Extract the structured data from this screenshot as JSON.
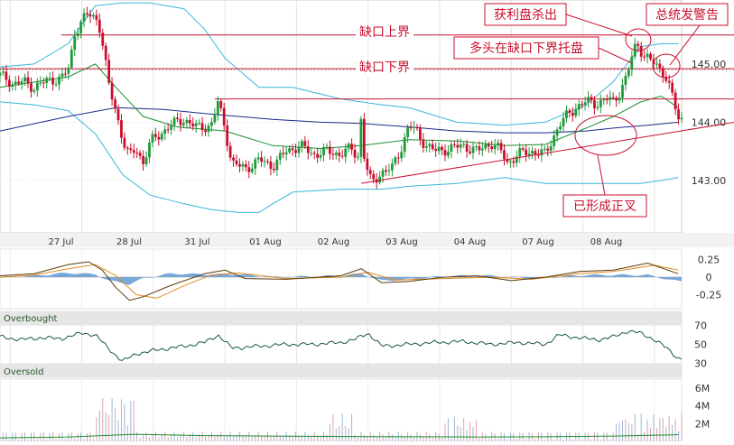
{
  "chart_data": [
    {
      "type": "candlestick",
      "panel": "price",
      "title": "",
      "x_ticks": [
        "27 Jul",
        "28 Jul",
        "31 Jul",
        "01 Aug",
        "02 Aug",
        "03 Aug",
        "04 Aug",
        "07 Aug",
        "08 Aug"
      ],
      "y_ticks": [
        "145.00",
        "144.00",
        "143.00"
      ],
      "y_tick_values": [
        145.0,
        144.0,
        143.0
      ],
      "ylim": [
        142.1,
        146.1
      ],
      "xlim": [
        0,
        1
      ],
      "session_marks": [
        0.015,
        0.12,
        0.225,
        0.33,
        0.435,
        0.54,
        0.645,
        0.75,
        0.855,
        0.96
      ],
      "close_series": [
        [
          0.0,
          144.8
        ],
        [
          0.01,
          144.75
        ],
        [
          0.02,
          144.65
        ],
        [
          0.035,
          144.7
        ],
        [
          0.05,
          144.6
        ],
        [
          0.07,
          144.72
        ],
        [
          0.09,
          144.75
        ],
        [
          0.1,
          144.9
        ],
        [
          0.105,
          145.2
        ],
        [
          0.11,
          145.55
        ],
        [
          0.12,
          145.75
        ],
        [
          0.13,
          145.85
        ],
        [
          0.14,
          145.8
        ],
        [
          0.145,
          145.7
        ],
        [
          0.15,
          145.4
        ],
        [
          0.155,
          145.0
        ],
        [
          0.16,
          144.6
        ],
        [
          0.17,
          144.2
        ],
        [
          0.18,
          143.7
        ],
        [
          0.19,
          143.4
        ],
        [
          0.2,
          143.55
        ],
        [
          0.21,
          143.3
        ],
        [
          0.22,
          143.65
        ],
        [
          0.235,
          143.8
        ],
        [
          0.25,
          143.95
        ],
        [
          0.27,
          144.05
        ],
        [
          0.29,
          143.9
        ],
        [
          0.31,
          143.95
        ],
        [
          0.32,
          144.35
        ],
        [
          0.33,
          143.9
        ],
        [
          0.34,
          143.3
        ],
        [
          0.36,
          143.2
        ],
        [
          0.38,
          143.35
        ],
        [
          0.4,
          143.25
        ],
        [
          0.42,
          143.5
        ],
        [
          0.44,
          143.6
        ],
        [
          0.46,
          143.45
        ],
        [
          0.48,
          143.5
        ],
        [
          0.5,
          143.45
        ],
        [
          0.515,
          143.55
        ],
        [
          0.525,
          143.4
        ],
        [
          0.53,
          144.1
        ],
        [
          0.535,
          143.3
        ],
        [
          0.545,
          142.95
        ],
        [
          0.56,
          143.15
        ],
        [
          0.575,
          143.2
        ],
        [
          0.59,
          143.6
        ],
        [
          0.6,
          143.95
        ],
        [
          0.61,
          143.85
        ],
        [
          0.625,
          143.6
        ],
        [
          0.64,
          143.5
        ],
        [
          0.66,
          143.55
        ],
        [
          0.68,
          143.6
        ],
        [
          0.7,
          143.5
        ],
        [
          0.72,
          143.65
        ],
        [
          0.735,
          143.5
        ],
        [
          0.745,
          143.3
        ],
        [
          0.76,
          143.45
        ],
        [
          0.78,
          143.5
        ],
        [
          0.8,
          143.45
        ],
        [
          0.81,
          143.7
        ],
        [
          0.82,
          143.95
        ],
        [
          0.835,
          144.15
        ],
        [
          0.85,
          144.3
        ],
        [
          0.86,
          144.35
        ],
        [
          0.875,
          144.32
        ],
        [
          0.89,
          144.4
        ],
        [
          0.9,
          144.35
        ],
        [
          0.91,
          144.55
        ],
        [
          0.92,
          144.8
        ],
        [
          0.93,
          145.25
        ],
        [
          0.935,
          145.35
        ],
        [
          0.945,
          145.15
        ],
        [
          0.955,
          145.05
        ],
        [
          0.965,
          144.95
        ],
        [
          0.975,
          144.85
        ],
        [
          0.985,
          144.5
        ],
        [
          0.995,
          144.05
        ]
      ],
      "ma_series": [
        [
          0.0,
          144.6
        ],
        [
          0.1,
          144.78
        ],
        [
          0.14,
          145.0
        ],
        [
          0.17,
          144.6
        ],
        [
          0.21,
          144.1
        ],
        [
          0.26,
          143.92
        ],
        [
          0.33,
          143.85
        ],
        [
          0.4,
          143.6
        ],
        [
          0.47,
          143.55
        ],
        [
          0.53,
          143.6
        ],
        [
          0.6,
          143.7
        ],
        [
          0.67,
          143.68
        ],
        [
          0.74,
          143.6
        ],
        [
          0.8,
          143.62
        ],
        [
          0.86,
          143.9
        ],
        [
          0.9,
          144.1
        ],
        [
          0.94,
          144.35
        ],
        [
          0.97,
          144.45
        ],
        [
          0.995,
          144.25
        ]
      ],
      "slow_ma_series": [
        [
          0.0,
          143.85
        ],
        [
          0.1,
          144.1
        ],
        [
          0.17,
          144.25
        ],
        [
          0.24,
          144.22
        ],
        [
          0.3,
          144.15
        ],
        [
          0.4,
          144.05
        ],
        [
          0.47,
          144.0
        ],
        [
          0.53,
          143.98
        ],
        [
          0.6,
          143.92
        ],
        [
          0.67,
          143.85
        ],
        [
          0.74,
          143.82
        ],
        [
          0.8,
          143.82
        ],
        [
          0.86,
          143.85
        ],
        [
          0.9,
          143.9
        ],
        [
          0.95,
          143.95
        ],
        [
          0.995,
          144.0
        ]
      ],
      "bollinger_upper": [
        [
          0.0,
          144.95
        ],
        [
          0.05,
          145.0
        ],
        [
          0.1,
          145.35
        ],
        [
          0.14,
          146.0
        ],
        [
          0.18,
          146.05
        ],
        [
          0.22,
          146.05
        ],
        [
          0.27,
          145.95
        ],
        [
          0.3,
          145.6
        ],
        [
          0.33,
          145.1
        ],
        [
          0.38,
          144.6
        ],
        [
          0.43,
          144.6
        ],
        [
          0.5,
          144.4
        ],
        [
          0.56,
          144.3
        ],
        [
          0.6,
          144.25
        ],
        [
          0.67,
          144.0
        ],
        [
          0.74,
          143.95
        ],
        [
          0.8,
          144.0
        ],
        [
          0.86,
          144.3
        ],
        [
          0.9,
          144.7
        ],
        [
          0.94,
          145.3
        ],
        [
          0.97,
          145.35
        ],
        [
          0.995,
          145.35
        ]
      ],
      "bollinger_lower": [
        [
          0.0,
          144.35
        ],
        [
          0.05,
          144.3
        ],
        [
          0.1,
          144.2
        ],
        [
          0.14,
          143.8
        ],
        [
          0.18,
          143.1
        ],
        [
          0.22,
          142.75
        ],
        [
          0.27,
          142.6
        ],
        [
          0.31,
          142.5
        ],
        [
          0.35,
          142.45
        ],
        [
          0.38,
          142.45
        ],
        [
          0.4,
          142.6
        ],
        [
          0.43,
          142.8
        ],
        [
          0.5,
          142.85
        ],
        [
          0.56,
          142.85
        ],
        [
          0.6,
          142.9
        ],
        [
          0.67,
          142.95
        ],
        [
          0.74,
          143.05
        ],
        [
          0.8,
          142.95
        ],
        [
          0.86,
          142.95
        ],
        [
          0.9,
          142.95
        ],
        [
          0.94,
          142.95
        ],
        [
          0.97,
          143.0
        ],
        [
          0.995,
          143.05
        ]
      ],
      "trendline": [
        [
          0.53,
          142.95
        ],
        [
          1.0,
          144.0
        ]
      ],
      "hlines": [
        {
          "y": 145.5,
          "style": "solid",
          "x_from": 0.09
        },
        {
          "y": 144.92,
          "style": "solid",
          "x_from": 0.0
        },
        {
          "y": 144.9,
          "style": "dotted",
          "x_from": 0.0
        },
        {
          "y": 144.4,
          "style": "solid",
          "x_from": 0.315
        }
      ],
      "annotations": [
        {
          "id": "gap_upper",
          "text": "缺口上界"
        },
        {
          "id": "gap_lower",
          "text": "缺口下界"
        },
        {
          "id": "profit_taking",
          "text": "获利盘杀出"
        },
        {
          "id": "bull_support",
          "text": "多头在缺口下界托盘"
        },
        {
          "id": "warning",
          "text": "总统发警告"
        },
        {
          "id": "golden_cross",
          "text": "已形成正叉"
        }
      ],
      "colors": {
        "up": "#1f9a3a",
        "down": "#c8102e",
        "ma": "#1d8f2f",
        "slow_ma": "#1b2a8c",
        "bollinger": "#35b8d8",
        "annotation": "#c8102e"
      }
    },
    {
      "type": "line",
      "panel": "oscillator",
      "y_ticks": [
        "0.25",
        "0",
        "-0.25"
      ],
      "y_tick_values": [
        0.25,
        0.0,
        -0.25
      ],
      "ylim": [
        -0.45,
        0.4
      ],
      "fast_series": [
        [
          0.0,
          0.02
        ],
        [
          0.05,
          0.05
        ],
        [
          0.1,
          0.18
        ],
        [
          0.13,
          0.22
        ],
        [
          0.15,
          0.1
        ],
        [
          0.17,
          -0.15
        ],
        [
          0.19,
          -0.33
        ],
        [
          0.21,
          -0.28
        ],
        [
          0.25,
          -0.12
        ],
        [
          0.3,
          0.05
        ],
        [
          0.33,
          0.1
        ],
        [
          0.36,
          -0.02
        ],
        [
          0.42,
          -0.03
        ],
        [
          0.5,
          0.02
        ],
        [
          0.53,
          0.12
        ],
        [
          0.56,
          -0.08
        ],
        [
          0.6,
          -0.06
        ],
        [
          0.65,
          0.0
        ],
        [
          0.7,
          0.02
        ],
        [
          0.75,
          -0.05
        ],
        [
          0.8,
          0.0
        ],
        [
          0.85,
          0.08
        ],
        [
          0.9,
          0.1
        ],
        [
          0.95,
          0.2
        ],
        [
          0.995,
          0.05
        ]
      ],
      "slow_series": [
        [
          0.0,
          0.0
        ],
        [
          0.05,
          0.03
        ],
        [
          0.1,
          0.12
        ],
        [
          0.14,
          0.18
        ],
        [
          0.17,
          0.02
        ],
        [
          0.2,
          -0.25
        ],
        [
          0.23,
          -0.3
        ],
        [
          0.27,
          -0.12
        ],
        [
          0.31,
          0.03
        ],
        [
          0.35,
          0.06
        ],
        [
          0.42,
          -0.02
        ],
        [
          0.5,
          0.0
        ],
        [
          0.54,
          0.07
        ],
        [
          0.58,
          -0.04
        ],
        [
          0.65,
          -0.02
        ],
        [
          0.72,
          0.0
        ],
        [
          0.78,
          -0.03
        ],
        [
          0.85,
          0.05
        ],
        [
          0.9,
          0.08
        ],
        [
          0.96,
          0.17
        ],
        [
          0.995,
          0.1
        ]
      ],
      "histogram": [
        [
          0.0,
          0.0
        ],
        [
          0.05,
          0.02
        ],
        [
          0.1,
          0.06
        ],
        [
          0.14,
          0.04
        ],
        [
          0.16,
          -0.05
        ],
        [
          0.19,
          -0.1
        ],
        [
          0.21,
          -0.02
        ],
        [
          0.25,
          0.05
        ],
        [
          0.3,
          0.04
        ],
        [
          0.35,
          0.04
        ],
        [
          0.4,
          0.0
        ],
        [
          0.5,
          0.02
        ],
        [
          0.53,
          0.05
        ],
        [
          0.56,
          -0.05
        ],
        [
          0.6,
          -0.03
        ],
        [
          0.66,
          0.02
        ],
        [
          0.72,
          0.02
        ],
        [
          0.78,
          -0.02
        ],
        [
          0.86,
          0.03
        ],
        [
          0.9,
          0.03
        ],
        [
          0.95,
          0.03
        ],
        [
          0.995,
          -0.06
        ]
      ],
      "colors": {
        "fast": "#5a3a0a",
        "slow": "#e08a1e",
        "histogram": "#6a9fd4"
      }
    },
    {
      "type": "line",
      "panel": "rsi",
      "label_top": "Overbought",
      "label_bottom": "Oversold",
      "y_ticks": [
        "70",
        "50",
        "30"
      ],
      "y_tick_values": [
        70,
        50,
        30
      ],
      "ylim": [
        15,
        85
      ],
      "band_top": 70,
      "band_bottom": 30,
      "values": [
        [
          0.0,
          58
        ],
        [
          0.03,
          55
        ],
        [
          0.06,
          57
        ],
        [
          0.09,
          56
        ],
        [
          0.12,
          62
        ],
        [
          0.14,
          60
        ],
        [
          0.16,
          45
        ],
        [
          0.18,
          32
        ],
        [
          0.2,
          40
        ],
        [
          0.23,
          44
        ],
        [
          0.27,
          48
        ],
        [
          0.3,
          52
        ],
        [
          0.32,
          60
        ],
        [
          0.34,
          46
        ],
        [
          0.38,
          48
        ],
        [
          0.42,
          50
        ],
        [
          0.46,
          50
        ],
        [
          0.5,
          52
        ],
        [
          0.52,
          55
        ],
        [
          0.54,
          62
        ],
        [
          0.56,
          48
        ],
        [
          0.6,
          50
        ],
        [
          0.64,
          52
        ],
        [
          0.68,
          53
        ],
        [
          0.72,
          50
        ],
        [
          0.76,
          52
        ],
        [
          0.8,
          50
        ],
        [
          0.82,
          60
        ],
        [
          0.84,
          58
        ],
        [
          0.86,
          56
        ],
        [
          0.88,
          55
        ],
        [
          0.9,
          58
        ],
        [
          0.92,
          64
        ],
        [
          0.94,
          62
        ],
        [
          0.96,
          55
        ],
        [
          0.98,
          45
        ],
        [
          0.995,
          35
        ]
      ],
      "colors": {
        "line": "#1a5a3a",
        "band": "#e6e6e6"
      }
    },
    {
      "type": "bar",
      "panel": "volume",
      "y_ticks": [
        "6M",
        "4M",
        "2M"
      ],
      "y_tick_values": [
        6000000,
        4000000,
        2000000
      ],
      "ylim": [
        0,
        7000000
      ],
      "average_line": [
        [
          0.0,
          400000
        ],
        [
          0.1,
          500000
        ],
        [
          0.2,
          800000
        ],
        [
          0.3,
          650000
        ],
        [
          0.4,
          600000
        ],
        [
          0.5,
          550000
        ],
        [
          0.6,
          520000
        ],
        [
          0.7,
          500000
        ],
        [
          0.8,
          520000
        ],
        [
          0.9,
          600000
        ],
        [
          0.995,
          750000
        ]
      ],
      "colors": {
        "up": "#9ab7d8",
        "down": "#e0a2ad",
        "avg": "#1d8f2f"
      }
    }
  ]
}
